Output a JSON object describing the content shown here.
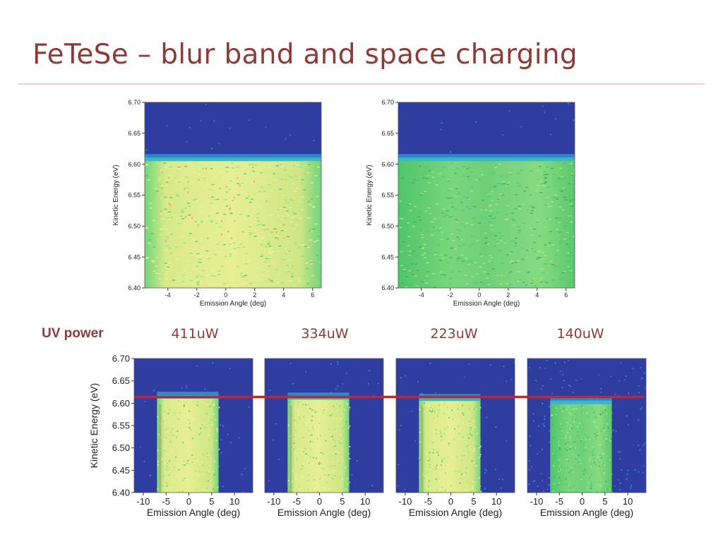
{
  "slide": {
    "title": "FeTeSe – blur band and space charging",
    "uv_label": "UV power"
  },
  "colors": {
    "title": "#8f3a37",
    "rule": "#f2cfcc",
    "edge_line": "#dd1c1c",
    "map_background": "#2f3ca0",
    "map_band": "#5ccd6e",
    "map_hot": "#e8ef88"
  },
  "chart_data": [
    {
      "id": "top-left",
      "type": "heatmap",
      "xlabel": "Emission Angle (deg)",
      "ylabel": "Kinetic Energy (eV)",
      "xlim": [
        -5.6,
        6.6
      ],
      "ylim": [
        6.4,
        6.7
      ],
      "xticks": [
        -4,
        -2,
        0,
        2,
        4,
        6
      ],
      "xtick_labels": [
        "-4",
        "-2",
        "0",
        "2",
        "4",
        "6"
      ],
      "yticks": [
        6.4,
        6.45,
        6.5,
        6.55,
        6.6,
        6.65,
        6.7
      ],
      "ytick_labels": [
        "6.40",
        "6.45",
        "6.50",
        "6.55",
        "6.60",
        "6.65",
        "6.70"
      ],
      "band": {
        "x_range": [
          -5.6,
          6.6
        ],
        "edge_ev": 6.605,
        "intensity": "high"
      }
    },
    {
      "id": "top-right",
      "type": "heatmap",
      "xlabel": "Emission Angle (deg)",
      "ylabel": "Kinetic Energy (eV)",
      "xlim": [
        -5.6,
        6.6
      ],
      "ylim": [
        6.4,
        6.7
      ],
      "xticks": [
        -4,
        -2,
        0,
        2,
        4,
        6
      ],
      "xtick_labels": [
        "-4",
        "-2",
        "0",
        "2",
        "4",
        "6"
      ],
      "yticks": [
        6.4,
        6.45,
        6.5,
        6.55,
        6.6,
        6.65,
        6.7
      ],
      "ytick_labels": [
        "6.40",
        "6.45",
        "6.50",
        "6.55",
        "6.60",
        "6.65",
        "6.70"
      ],
      "band": {
        "x_range": [
          -5.6,
          6.6
        ],
        "edge_ev": 6.605,
        "intensity": "medium"
      }
    },
    {
      "id": "power-411",
      "type": "heatmap",
      "power": "411uW",
      "xlabel": "Emission Angle (deg)",
      "ylabel": "Kinetic Energy (eV)",
      "xlim": [
        -12,
        14
      ],
      "ylim": [
        6.4,
        6.7
      ],
      "xticks": [
        -10,
        -5,
        0,
        5,
        10
      ],
      "xtick_labels": [
        "-10",
        "-5",
        "0",
        "5",
        "10"
      ],
      "yticks": [
        6.4,
        6.45,
        6.5,
        6.55,
        6.6,
        6.65,
        6.7
      ],
      "ytick_labels": [
        "6.40",
        "6.45",
        "6.50",
        "6.55",
        "6.60",
        "6.65",
        "6.70"
      ],
      "band": {
        "x_range": [
          -7,
          6.5
        ],
        "edge_ev": 6.61,
        "intensity": "high"
      }
    },
    {
      "id": "power-334",
      "type": "heatmap",
      "power": "334uW",
      "xlabel": "Emission Angle (deg)",
      "ylabel": "",
      "xlim": [
        -12,
        14
      ],
      "ylim": [
        6.4,
        6.7
      ],
      "xticks": [
        -10,
        -5,
        0,
        5,
        10
      ],
      "xtick_labels": [
        "-10",
        "-5",
        "0",
        "5",
        "10"
      ],
      "yticks": [],
      "ytick_labels": [],
      "band": {
        "x_range": [
          -7,
          6.5
        ],
        "edge_ev": 6.608,
        "intensity": "high"
      }
    },
    {
      "id": "power-223",
      "type": "heatmap",
      "power": "223uW",
      "xlabel": "Emission Angle (deg)",
      "ylabel": "",
      "xlim": [
        -12,
        14
      ],
      "ylim": [
        6.4,
        6.7
      ],
      "xticks": [
        -10,
        -5,
        0,
        5,
        10
      ],
      "xtick_labels": [
        "-10",
        "-5",
        "0",
        "5",
        "10"
      ],
      "yticks": [],
      "ytick_labels": [],
      "band": {
        "x_range": [
          -7,
          6.5
        ],
        "edge_ev": 6.605,
        "intensity": "high"
      }
    },
    {
      "id": "power-140",
      "type": "heatmap",
      "power": "140uW",
      "xlabel": "Emission Angle (deg)",
      "ylabel": "",
      "xlim": [
        -12,
        14
      ],
      "ylim": [
        6.4,
        6.7
      ],
      "xticks": [
        -10,
        -5,
        0,
        5,
        10
      ],
      "xtick_labels": [
        "-10",
        "-5",
        "0",
        "5",
        "10"
      ],
      "yticks": [],
      "ytick_labels": [],
      "band": {
        "x_range": [
          -7,
          6.5
        ],
        "edge_ev": 6.598,
        "intensity": "medium"
      }
    }
  ],
  "reference_line": {
    "energy_ev": 6.614
  }
}
